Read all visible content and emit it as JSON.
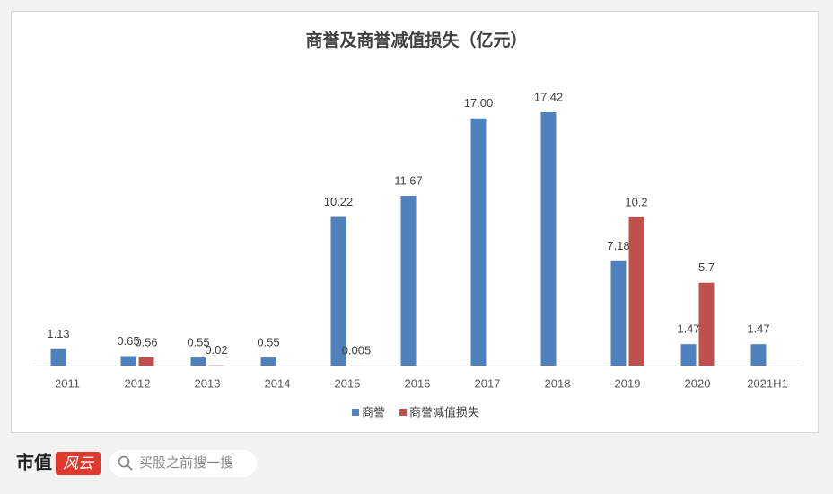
{
  "chart_data": {
    "type": "bar",
    "title": "商誉及商誉减值损失（亿元）",
    "categories": [
      "2011",
      "2012",
      "2013",
      "2014",
      "2015",
      "2016",
      "2017",
      "2018",
      "2019",
      "2020",
      "2021H1"
    ],
    "series": [
      {
        "name": "商誉",
        "color": "#4f81bd",
        "values": [
          1.13,
          0.65,
          0.55,
          0.55,
          10.22,
          11.67,
          17.0,
          17.42,
          7.18,
          1.47,
          1.47
        ],
        "value_labels": [
          "1.13",
          "0.65",
          "0.55",
          "0.55",
          "10.22",
          "11.67",
          "17.00",
          "17.42",
          "7.18",
          "1.47",
          "1.47"
        ]
      },
      {
        "name": "商誉减值损失",
        "color": "#c0504d",
        "values": [
          null,
          0.56,
          0.02,
          null,
          0.005,
          null,
          null,
          null,
          10.2,
          5.7,
          null
        ],
        "value_labels": [
          null,
          "0.56",
          "0.02",
          null,
          "0.005",
          null,
          null,
          null,
          "10.2",
          "5.7",
          null
        ]
      }
    ],
    "legend": "bottom",
    "grid": false
  },
  "footer": {
    "logo": "市值",
    "logo_badge": "风云",
    "search_placeholder": "买股之前搜一搜"
  }
}
